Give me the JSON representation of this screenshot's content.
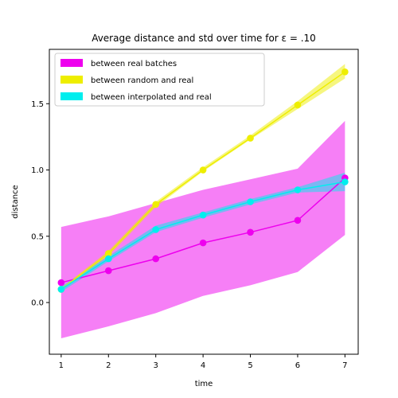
{
  "chart_data": {
    "type": "line",
    "title": "Average distance and std over time for ε = .10",
    "xlabel": "time",
    "ylabel": "distance",
    "x": [
      1,
      2,
      3,
      4,
      5,
      6,
      7
    ],
    "xlim": [
      0.75,
      7.28
    ],
    "ylim": [
      -0.39,
      1.91
    ],
    "xticks": [
      1,
      2,
      3,
      4,
      5,
      6,
      7
    ],
    "yticks": [
      0.0,
      0.5,
      1.0,
      1.5
    ],
    "ytick_labels": [
      "0.0",
      "0.5",
      "1.0",
      "1.5"
    ],
    "legend_position": "upper-left",
    "grid": false,
    "series": [
      {
        "name": "between real batches",
        "color": "#ee00ee",
        "fill_color": "#ee00ee",
        "values": [
          0.15,
          0.24,
          0.33,
          0.45,
          0.53,
          0.62,
          0.94
        ],
        "lower": [
          -0.27,
          -0.18,
          -0.08,
          0.05,
          0.13,
          0.23,
          0.51
        ],
        "upper": [
          0.57,
          0.65,
          0.75,
          0.85,
          0.93,
          1.01,
          1.37
        ]
      },
      {
        "name": "between random and real",
        "color": "#eeee00",
        "fill_color": "#eeee00",
        "values": [
          0.1,
          0.37,
          0.74,
          1.0,
          1.24,
          1.49,
          1.74
        ],
        "lower": [
          0.09,
          0.35,
          0.72,
          0.99,
          1.23,
          1.46,
          1.69
        ],
        "upper": [
          0.11,
          0.39,
          0.76,
          1.02,
          1.26,
          1.52,
          1.8
        ]
      },
      {
        "name": "between interpolated and real",
        "color": "#00eeee",
        "fill_color": "#00eeee",
        "values": [
          0.1,
          0.33,
          0.55,
          0.66,
          0.76,
          0.85,
          0.91
        ],
        "lower": [
          0.08,
          0.31,
          0.53,
          0.64,
          0.74,
          0.83,
          0.84
        ],
        "upper": [
          0.12,
          0.35,
          0.58,
          0.68,
          0.78,
          0.87,
          0.98
        ]
      }
    ]
  }
}
